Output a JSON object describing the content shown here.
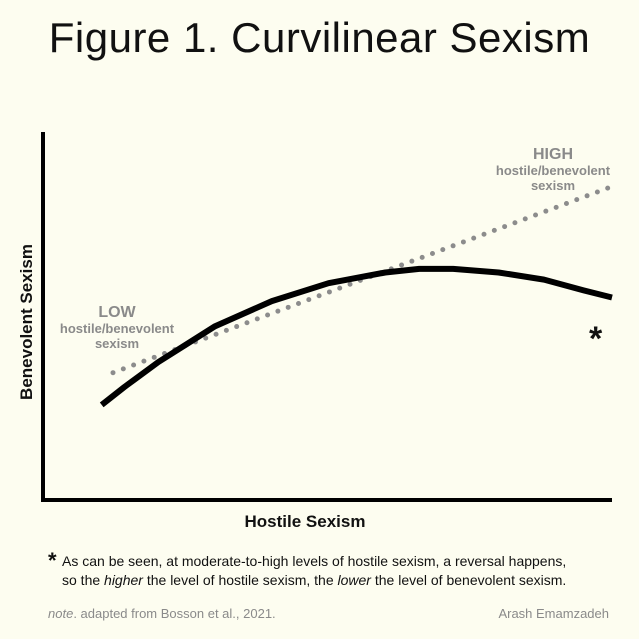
{
  "title": "Figure 1. Curvilinear Sexism",
  "chart_data": {
    "type": "line",
    "xlabel": "Hostile Sexism",
    "ylabel": "Benevolent Sexism",
    "xlim": [
      0,
      100
    ],
    "ylim": [
      0,
      100
    ],
    "grid": false,
    "axis_ticks": false,
    "series": [
      {
        "style": "solid",
        "color": "#000000",
        "x": [
          10,
          14,
          20,
          30,
          40,
          50,
          60,
          66,
          72,
          80,
          88,
          95,
          100
        ],
        "y": [
          26,
          31,
          38,
          48,
          55,
          60,
          63,
          64,
          64,
          63,
          61,
          58,
          56
        ]
      },
      {
        "style": "dotted",
        "color": "#8c8c8c",
        "x": [
          12,
          100
        ],
        "y": [
          35,
          87
        ]
      }
    ],
    "annotations": {
      "low": {
        "big": "LOW",
        "small1": "hostile/benevolent",
        "small2": "sexism"
      },
      "high": {
        "big": "HIGH",
        "small1": "hostile/benevolent",
        "small2": "sexism"
      },
      "marker": "*"
    }
  },
  "footnote": {
    "star": "*",
    "line1": "As can be seen, at moderate-to-high levels of hostile sexism, a reversal happens,",
    "line2_pre": "so the ",
    "line2_it1": "higher",
    "line2_mid": " the level of hostile sexism, the ",
    "line2_it2": "lower",
    "line2_post": " the level of benevolent sexism."
  },
  "note": {
    "label": "note",
    "text": ". adapted from Bosson et al., 2021."
  },
  "author": "Arash Emamzadeh"
}
